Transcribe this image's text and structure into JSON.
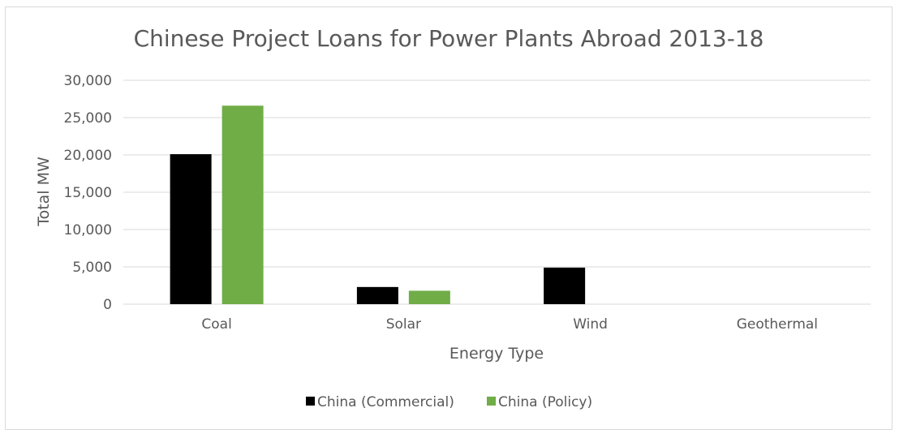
{
  "chart_data": {
    "type": "bar",
    "title": "Chinese Project Loans for Power Plants Abroad 2013-18",
    "xlabel": "Energy Type",
    "ylabel": "Total MW",
    "categories": [
      "Coal",
      "Solar",
      "Wind",
      "Geothermal"
    ],
    "series": [
      {
        "name": "China (Commercial)",
        "color": "#000000",
        "values": [
          20100,
          2300,
          4900,
          0
        ]
      },
      {
        "name": "China (Policy)",
        "color": "#70ad47",
        "values": [
          26600,
          1800,
          0,
          0
        ]
      }
    ],
    "ylim": [
      0,
      30000
    ],
    "yticks": [
      0,
      5000,
      10000,
      15000,
      20000,
      25000,
      30000
    ],
    "ytick_labels": [
      "0",
      "5,000",
      "10,000",
      "15,000",
      "20,000",
      "25,000",
      "30,000"
    ],
    "grid": true,
    "legend_position": "bottom"
  }
}
